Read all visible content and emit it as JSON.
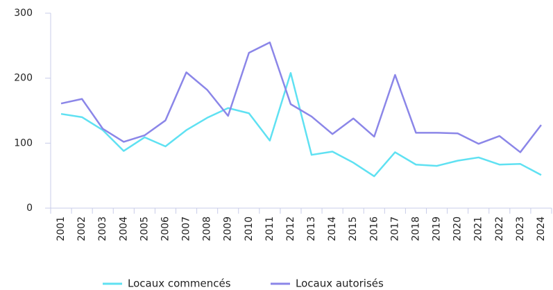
{
  "chart_data": {
    "type": "line",
    "categories": [
      "2001",
      "2002",
      "2003",
      "2004",
      "2005",
      "2006",
      "2007",
      "2008",
      "2009",
      "2010",
      "2011",
      "2012",
      "2013",
      "2014",
      "2015",
      "2016",
      "2017",
      "2018",
      "2019",
      "2020",
      "2021",
      "2022",
      "2023",
      "2024"
    ],
    "series": [
      {
        "name": "Locaux commencés",
        "color": "#5fe1f2",
        "values": [
          145,
          140,
          120,
          88,
          109,
          95,
          120,
          139,
          154,
          146,
          104,
          208,
          82,
          87,
          70,
          49,
          86,
          67,
          65,
          73,
          78,
          67,
          68,
          51
        ]
      },
      {
        "name": "Locaux autorisés",
        "color": "#8b86e8",
        "values": [
          161,
          168,
          122,
          102,
          112,
          135,
          209,
          182,
          142,
          239,
          255,
          160,
          141,
          114,
          138,
          110,
          205,
          116,
          116,
          115,
          99,
          111,
          86,
          128
        ]
      }
    ],
    "ylim": [
      0,
      300
    ],
    "yticks": [
      0,
      100,
      200,
      300
    ],
    "legend": "bottom"
  }
}
